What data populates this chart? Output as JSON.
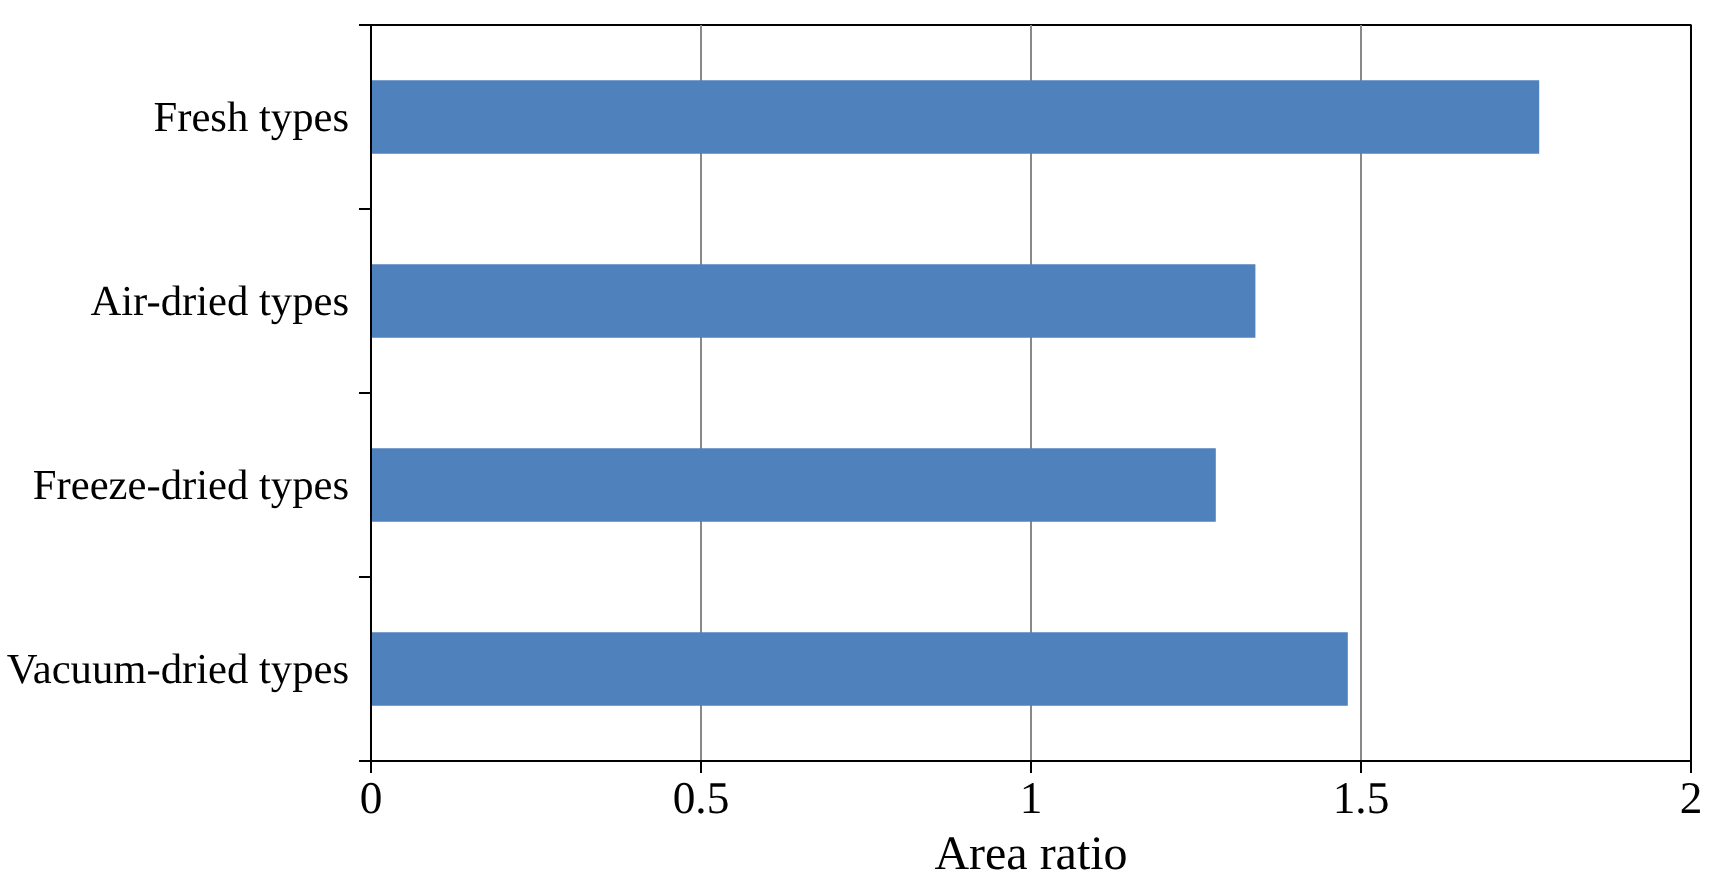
{
  "chart_data": {
    "type": "bar",
    "orientation": "horizontal",
    "xlabel": "Area ratio",
    "categories": [
      "Fresh types",
      "Air-dried types",
      "Freeze-dried types",
      "Vacuum-dried types"
    ],
    "values": [
      1.77,
      1.34,
      1.28,
      1.48
    ],
    "color": "#4f81bd",
    "xlim": [
      0,
      2
    ],
    "xticks": [
      0,
      0.5,
      1,
      1.5,
      2
    ],
    "grid": "x"
  }
}
